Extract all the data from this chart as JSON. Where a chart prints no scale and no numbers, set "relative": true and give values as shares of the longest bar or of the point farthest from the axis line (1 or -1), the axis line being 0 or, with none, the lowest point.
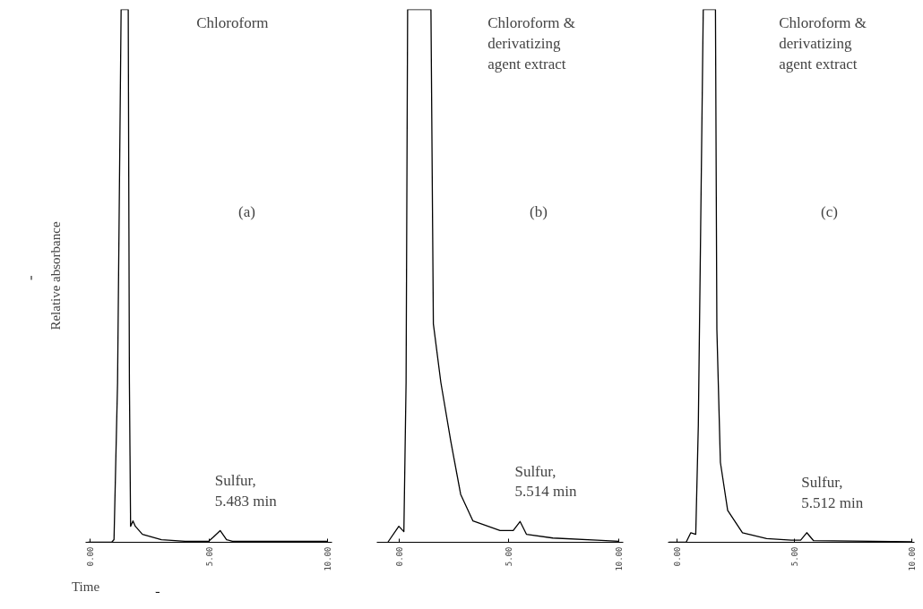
{
  "chart_data": [
    {
      "type": "line",
      "relative": true,
      "tick_labels": "x",
      "grid": false,
      "ylabel": "Relative absorbance",
      "xlabel": "Time",
      "xlim": [
        -0.2,
        10.2
      ],
      "xticks": [
        {
          "value": 0,
          "label": "0.00"
        },
        {
          "value": 5,
          "label": "5.00"
        },
        {
          "value": 10,
          "label": "10.00"
        }
      ],
      "annotations": [
        "Chloroform",
        "(a)",
        {
          "text": "Sulfur,\n5.483 min",
          "x": 5.483,
          "y": 0.022
        }
      ],
      "series": [
        {
          "color": "#000000",
          "x": [
            -0.1,
            0.9,
            1.0,
            1.15,
            1.3,
            1.6,
            1.65,
            1.7,
            1.8,
            1.9,
            2.2,
            3.0,
            4.0,
            5.0,
            5.2,
            5.48,
            5.75,
            6.0,
            10.0
          ],
          "values": [
            0,
            0,
            0.005,
            0.3,
            1.0,
            1.0,
            0.3,
            0.03,
            0.04,
            0.03,
            0.015,
            0.005,
            0.002,
            0.002,
            0.01,
            0.022,
            0.005,
            0.002,
            0.002
          ]
        }
      ]
    },
    {
      "type": "line",
      "relative": true,
      "tick_labels": "x",
      "grid": false,
      "xlim": [
        -1.0,
        10.2
      ],
      "xticks": [
        {
          "value": 0,
          "label": "0.00"
        },
        {
          "value": 5,
          "label": "5.00"
        },
        {
          "value": 10,
          "label": "10.00"
        }
      ],
      "annotations": [
        "Chloroform &\nderivatizing\nagent extract",
        "(b)",
        {
          "text": "Sulfur,\n5.514 min",
          "x": 5.514,
          "y": 0.039
        }
      ],
      "series": [
        {
          "color": "#000000",
          "x": [
            -0.5,
            0.0,
            0.23,
            0.33,
            0.4,
            1.46,
            1.57,
            1.91,
            2.36,
            2.81,
            3.37,
            4.6,
            5.2,
            5.51,
            5.8,
            7.0,
            9.0,
            10.0
          ],
          "values": [
            0,
            0.03,
            0.02,
            0.3,
            1.0,
            1.0,
            0.41,
            0.3,
            0.19,
            0.09,
            0.04,
            0.022,
            0.022,
            0.039,
            0.015,
            0.008,
            0.004,
            0.002
          ]
        }
      ]
    },
    {
      "type": "line",
      "relative": true,
      "tick_labels": "x",
      "grid": false,
      "xlim": [
        -0.4,
        10.1
      ],
      "xticks": [
        {
          "value": 0,
          "label": "0.00"
        },
        {
          "value": 5,
          "label": "5.00"
        },
        {
          "value": 10,
          "label": "10.00"
        }
      ],
      "annotations": [
        "Chloroform &\nderivatizing\nagent extract",
        "(c)",
        {
          "text": "Sulfur,\n5.512 min",
          "x": 5.512,
          "y": 0.018
        }
      ],
      "series": [
        {
          "color": "#000000",
          "x": [
            -0.36,
            0.37,
            0.57,
            0.78,
            0.89,
            1.1,
            1.62,
            1.68,
            1.83,
            2.14,
            2.77,
            3.8,
            4.85,
            5.25,
            5.51,
            5.8,
            10.0
          ],
          "values": [
            0,
            0,
            0.018,
            0.015,
            0.22,
            1.0,
            1.0,
            0.4,
            0.15,
            0.06,
            0.018,
            0.007,
            0.004,
            0.004,
            0.018,
            0.003,
            0.001
          ]
        }
      ]
    }
  ]
}
